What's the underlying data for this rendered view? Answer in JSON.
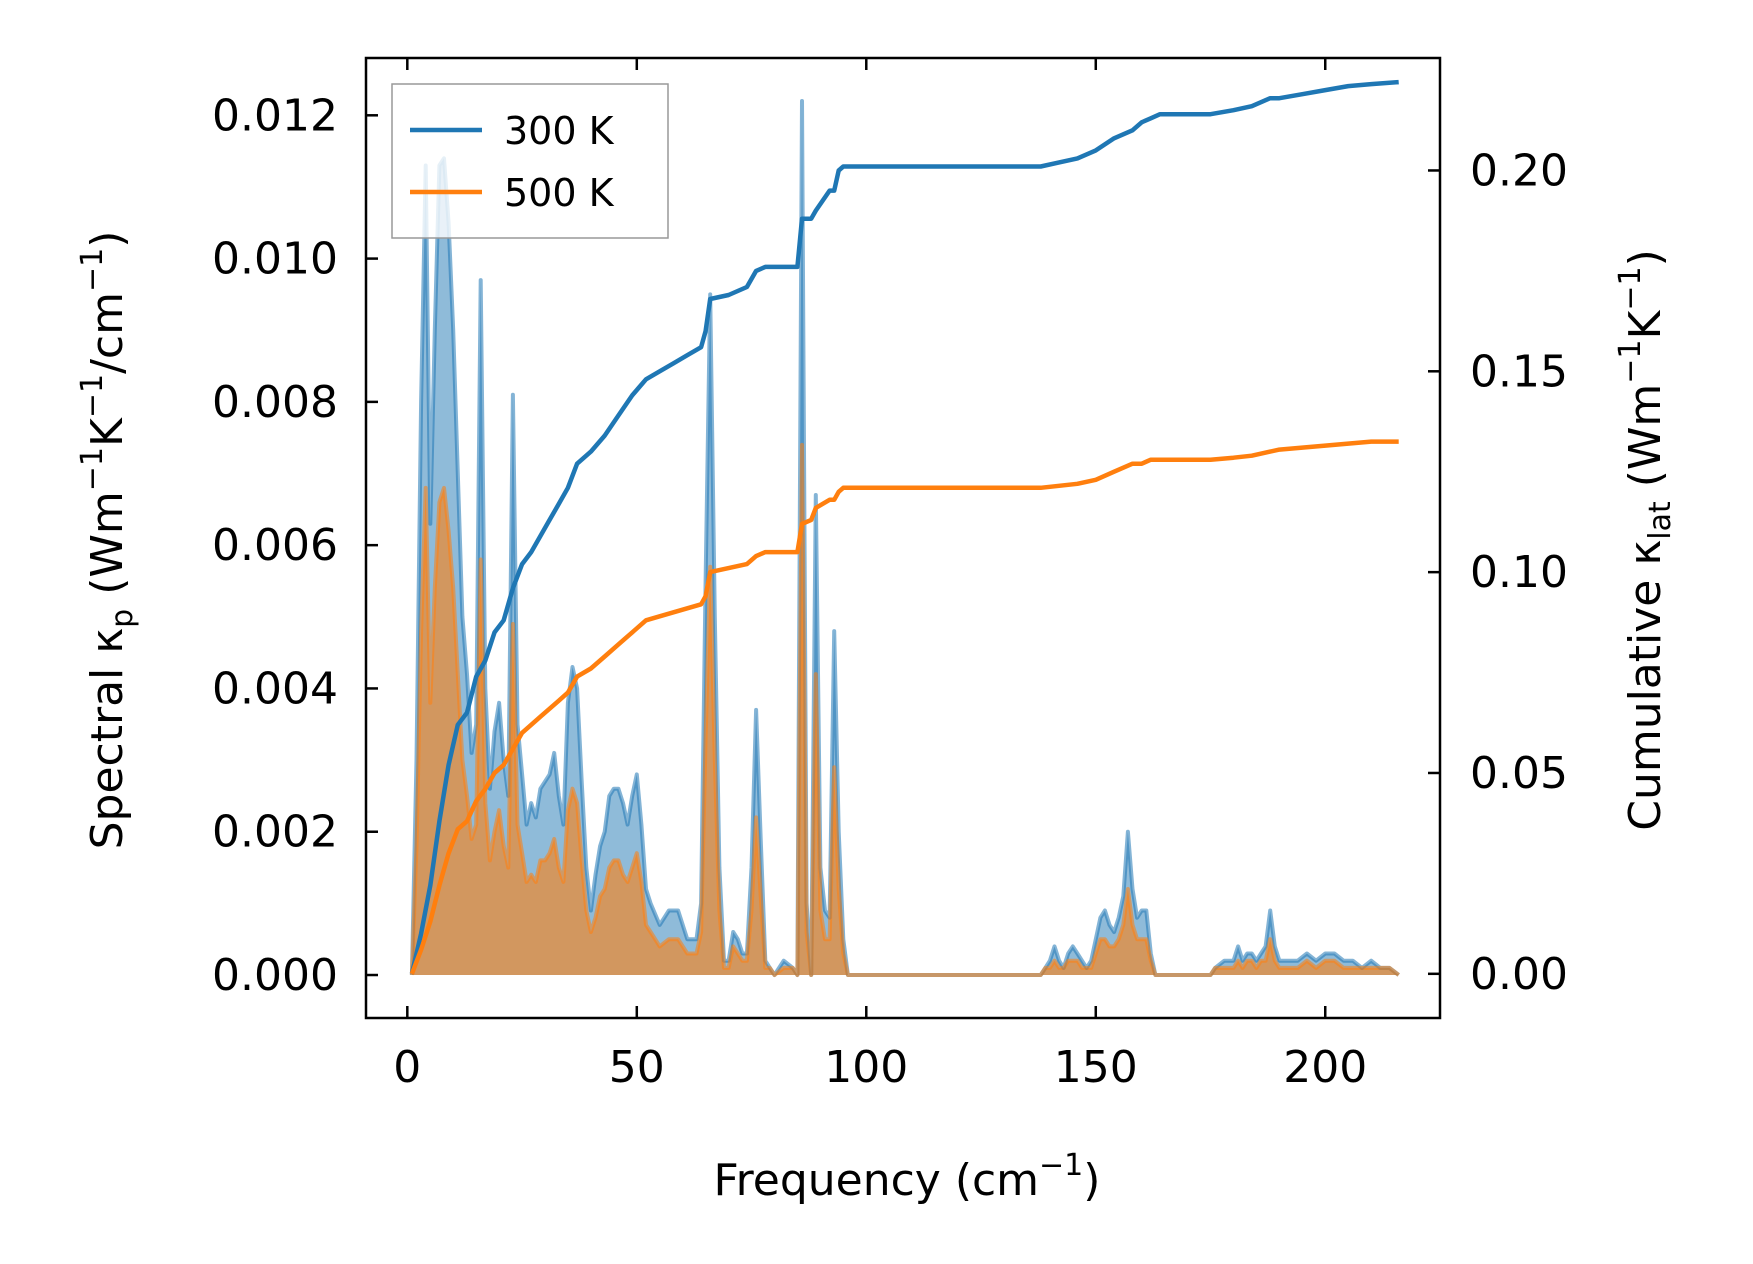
{
  "chart_data": {
    "type": "line",
    "xlabel": "Frequency (cm",
    "xlabel_sup": "−1",
    "xlabel_tail": ")",
    "ylabel_left": {
      "p1": "Spectral κ",
      "sub": "p",
      "p2": " (Wm",
      "sup1": "−1",
      "p3": "K",
      "sup2": "−1",
      "p4": "/cm",
      "sup3": "−1",
      "p5": ")"
    },
    "ylabel_right": {
      "p1": "Cumulative κ",
      "sub": "lat",
      "p2": " (Wm",
      "sup1": "−1",
      "p3": "K",
      "sup2": "−1",
      "p4": ")"
    },
    "xlim": [
      -9,
      225
    ],
    "ylim_left": [
      -0.0006,
      0.0128
    ],
    "ylim_right": [
      -0.011,
      0.228
    ],
    "x_ticks": [
      0,
      50,
      100,
      150,
      200
    ],
    "x_tick_labels": [
      "0",
      "50",
      "100",
      "150",
      "200"
    ],
    "y_left_ticks": [
      0,
      0.002,
      0.004,
      0.006,
      0.008,
      0.01,
      0.012
    ],
    "y_left_tick_labels": [
      "0.000",
      "0.002",
      "0.004",
      "0.006",
      "0.008",
      "0.010",
      "0.012"
    ],
    "y_right_ticks": [
      0,
      0.05,
      0.1,
      0.15,
      0.2
    ],
    "y_right_tick_labels": [
      "0.00",
      "0.05",
      "0.10",
      "0.15",
      "0.20"
    ],
    "legend_position": "upper-left",
    "grid": false,
    "series": [
      {
        "name": "300 K",
        "color": "#1f77b4",
        "spectral_x": [
          1,
          2,
          3,
          4,
          5,
          6,
          7,
          8,
          9,
          10,
          11,
          12,
          13,
          14,
          15,
          16,
          17,
          18,
          19,
          20,
          21,
          22,
          23,
          24,
          25,
          26,
          27,
          28,
          29,
          30,
          31,
          32,
          33,
          34,
          35,
          36,
          37,
          38,
          39,
          40,
          41,
          42,
          43,
          44,
          45,
          46,
          47,
          48,
          49,
          50,
          51,
          52,
          53,
          55,
          57,
          59,
          61,
          63,
          64,
          65,
          66,
          67,
          68,
          69,
          70,
          71,
          72,
          73,
          74,
          75,
          76,
          77,
          78,
          79,
          80,
          82,
          84,
          85,
          86,
          87,
          88,
          89,
          90,
          91,
          92,
          93,
          94,
          95,
          96,
          100,
          120,
          138,
          139,
          140,
          141,
          142,
          143,
          144,
          145,
          146,
          147,
          148,
          149,
          150,
          151,
          152,
          153,
          154,
          155,
          156,
          157,
          158,
          159,
          160,
          161,
          162,
          163,
          170,
          175,
          176,
          178,
          180,
          181,
          182,
          183,
          184,
          185,
          186,
          187,
          188,
          189,
          190,
          192,
          194,
          196,
          198,
          200,
          202,
          204,
          206,
          208,
          210,
          212,
          214,
          216
        ],
        "spectral_y": [
          0,
          0.003,
          0.008,
          0.0113,
          0.0063,
          0.009,
          0.0113,
          0.0114,
          0.0105,
          0.009,
          0.007,
          0.005,
          0.0042,
          0.0031,
          0.0035,
          0.0097,
          0.004,
          0.0026,
          0.0034,
          0.0038,
          0.003,
          0.0025,
          0.0081,
          0.0035,
          0.0028,
          0.0021,
          0.0024,
          0.0022,
          0.0026,
          0.0027,
          0.0028,
          0.0031,
          0.0025,
          0.0021,
          0.0038,
          0.0043,
          0.004,
          0.0027,
          0.0015,
          0.0009,
          0.0014,
          0.0018,
          0.002,
          0.0025,
          0.0026,
          0.0026,
          0.0024,
          0.0021,
          0.0025,
          0.0028,
          0.0021,
          0.0012,
          0.001,
          0.0007,
          0.0009,
          0.0009,
          0.0005,
          0.0005,
          0.001,
          0.0055,
          0.0095,
          0.005,
          0.0015,
          0.0002,
          0.0002,
          0.0006,
          0.0005,
          0.0003,
          0.0003,
          0.0015,
          0.0037,
          0.0019,
          0.0002,
          0.0001,
          0,
          0.0002,
          0.0001,
          0,
          0.0122,
          0.001,
          0,
          0.0067,
          0.0015,
          0.0009,
          0.0008,
          0.0048,
          0.002,
          0.0005,
          0,
          0,
          0,
          0,
          0.0001,
          0.0002,
          0.0004,
          0.0002,
          0.0001,
          0.0003,
          0.0004,
          0.0003,
          0.0002,
          0.0001,
          0.0002,
          0.0005,
          0.0008,
          0.0009,
          0.0007,
          0.0006,
          0.0008,
          0.0011,
          0.002,
          0.0012,
          0.0008,
          0.0009,
          0.0009,
          0.0003,
          0,
          0,
          0,
          0.0001,
          0.0002,
          0.0002,
          0.0004,
          0.0002,
          0.0003,
          0.0003,
          0.0002,
          0.0003,
          0.0004,
          0.0009,
          0.0004,
          0.0002,
          0.0002,
          0.0002,
          0.0003,
          0.0002,
          0.0003,
          0.0003,
          0.0002,
          0.0002,
          0.0001,
          0.0002,
          0.0001,
          0.0001,
          0
        ],
        "cumulative_x": [
          1,
          3,
          5,
          7,
          9,
          11,
          13,
          15,
          17,
          19,
          21,
          23,
          25,
          27,
          29,
          31,
          33,
          35,
          37,
          40,
          43,
          46,
          49,
          52,
          55,
          58,
          61,
          64,
          65,
          66,
          70,
          74,
          76,
          78,
          82,
          85,
          86,
          88,
          89,
          92,
          93,
          94,
          95,
          100,
          120,
          138,
          142,
          146,
          150,
          154,
          156,
          158,
          160,
          162,
          164,
          166,
          170,
          175,
          180,
          184,
          188,
          190,
          195,
          200,
          205,
          210,
          216
        ],
        "cumulative_y": [
          0,
          0.01,
          0.022,
          0.038,
          0.052,
          0.062,
          0.065,
          0.074,
          0.078,
          0.085,
          0.088,
          0.096,
          0.102,
          0.105,
          0.109,
          0.113,
          0.117,
          0.121,
          0.127,
          0.13,
          0.134,
          0.139,
          0.144,
          0.148,
          0.15,
          0.152,
          0.154,
          0.156,
          0.16,
          0.168,
          0.169,
          0.171,
          0.175,
          0.176,
          0.176,
          0.176,
          0.188,
          0.188,
          0.19,
          0.195,
          0.195,
          0.2,
          0.201,
          0.201,
          0.201,
          0.201,
          0.202,
          0.203,
          0.205,
          0.208,
          0.209,
          0.21,
          0.212,
          0.213,
          0.214,
          0.214,
          0.214,
          0.214,
          0.215,
          0.216,
          0.218,
          0.218,
          0.219,
          0.22,
          0.221,
          0.2215,
          0.222
        ]
      },
      {
        "name": "500 K",
        "color": "#ff7f0e",
        "spectral_x": [
          1,
          2,
          3,
          4,
          5,
          6,
          7,
          8,
          9,
          10,
          11,
          12,
          13,
          14,
          15,
          16,
          17,
          18,
          19,
          20,
          21,
          22,
          23,
          24,
          25,
          26,
          27,
          28,
          29,
          30,
          31,
          32,
          33,
          34,
          35,
          36,
          37,
          38,
          39,
          40,
          41,
          42,
          43,
          44,
          45,
          46,
          47,
          48,
          49,
          50,
          51,
          52,
          53,
          55,
          57,
          59,
          61,
          63,
          64,
          65,
          66,
          67,
          68,
          69,
          70,
          71,
          72,
          73,
          74,
          75,
          76,
          77,
          78,
          79,
          80,
          82,
          84,
          85,
          86,
          87,
          88,
          89,
          90,
          91,
          92,
          93,
          94,
          95,
          96,
          100,
          120,
          138,
          139,
          140,
          141,
          142,
          143,
          144,
          145,
          146,
          147,
          148,
          149,
          150,
          151,
          152,
          153,
          154,
          155,
          156,
          157,
          158,
          159,
          160,
          161,
          162,
          163,
          170,
          175,
          176,
          178,
          180,
          181,
          182,
          183,
          184,
          185,
          186,
          187,
          188,
          189,
          190,
          192,
          194,
          196,
          198,
          200,
          202,
          204,
          206,
          208,
          210,
          212,
          214,
          216
        ],
        "spectral_y": [
          0,
          0.0018,
          0.0048,
          0.0068,
          0.0038,
          0.0054,
          0.0066,
          0.0068,
          0.0062,
          0.0054,
          0.0042,
          0.003,
          0.0025,
          0.0019,
          0.0021,
          0.0058,
          0.0024,
          0.0016,
          0.002,
          0.0023,
          0.0018,
          0.0015,
          0.0049,
          0.0021,
          0.0017,
          0.0013,
          0.0014,
          0.0013,
          0.0016,
          0.0016,
          0.0017,
          0.0019,
          0.0015,
          0.0013,
          0.0023,
          0.0026,
          0.0024,
          0.0016,
          0.0009,
          0.0006,
          0.0008,
          0.0011,
          0.0012,
          0.0015,
          0.0016,
          0.0016,
          0.0014,
          0.0013,
          0.0015,
          0.0017,
          0.0013,
          0.0007,
          0.0006,
          0.0004,
          0.0005,
          0.0005,
          0.0003,
          0.0003,
          0.0006,
          0.0033,
          0.0057,
          0.003,
          0.0009,
          0.0001,
          0.0001,
          0.0004,
          0.0003,
          0.0002,
          0.0002,
          0.0009,
          0.0022,
          0.0011,
          0.0001,
          0.0001,
          0,
          0.0001,
          0.0001,
          0,
          0.0074,
          0.0006,
          0,
          0.0042,
          0.0009,
          0.0005,
          0.0005,
          0.0029,
          0.0012,
          0.0003,
          0,
          0,
          0,
          0,
          0.0001,
          0.0001,
          0.0002,
          0.0001,
          0.0001,
          0.0002,
          0.0002,
          0.0002,
          0.0001,
          0.0001,
          0.0001,
          0.0003,
          0.0005,
          0.0005,
          0.0004,
          0.0004,
          0.0005,
          0.0007,
          0.0012,
          0.0007,
          0.0005,
          0.0005,
          0.0005,
          0.0002,
          0,
          0,
          0,
          0.0001,
          0.0001,
          0.0001,
          0.0002,
          0.0001,
          0.0002,
          0.0002,
          0.0001,
          0.0002,
          0.0002,
          0.0005,
          0.0002,
          0.0001,
          0.0001,
          0.0001,
          0.0002,
          0.0001,
          0.0002,
          0.0002,
          0.0001,
          0.0001,
          0.0001,
          0.0001,
          0.0001,
          0.0001,
          0
        ],
        "cumulative_x": [
          1,
          3,
          5,
          7,
          9,
          11,
          13,
          15,
          17,
          19,
          21,
          23,
          25,
          27,
          29,
          31,
          33,
          35,
          37,
          40,
          43,
          46,
          49,
          52,
          55,
          58,
          61,
          64,
          65,
          66,
          70,
          74,
          76,
          78,
          82,
          85,
          86,
          88,
          89,
          92,
          93,
          94,
          95,
          100,
          120,
          138,
          142,
          146,
          150,
          154,
          156,
          158,
          160,
          162,
          164,
          166,
          170,
          175,
          180,
          184,
          188,
          190,
          195,
          200,
          205,
          210,
          216
        ],
        "cumulative_y": [
          0,
          0.006,
          0.013,
          0.022,
          0.03,
          0.036,
          0.038,
          0.043,
          0.046,
          0.05,
          0.052,
          0.056,
          0.06,
          0.062,
          0.064,
          0.066,
          0.068,
          0.07,
          0.074,
          0.076,
          0.079,
          0.082,
          0.085,
          0.088,
          0.089,
          0.09,
          0.091,
          0.092,
          0.094,
          0.1,
          0.101,
          0.102,
          0.104,
          0.105,
          0.105,
          0.105,
          0.112,
          0.113,
          0.116,
          0.118,
          0.118,
          0.12,
          0.121,
          0.121,
          0.121,
          0.121,
          0.1215,
          0.122,
          0.123,
          0.125,
          0.126,
          0.127,
          0.127,
          0.128,
          0.128,
          0.128,
          0.128,
          0.128,
          0.1285,
          0.129,
          0.13,
          0.1305,
          0.131,
          0.1315,
          0.132,
          0.1325,
          0.1325
        ]
      }
    ]
  }
}
